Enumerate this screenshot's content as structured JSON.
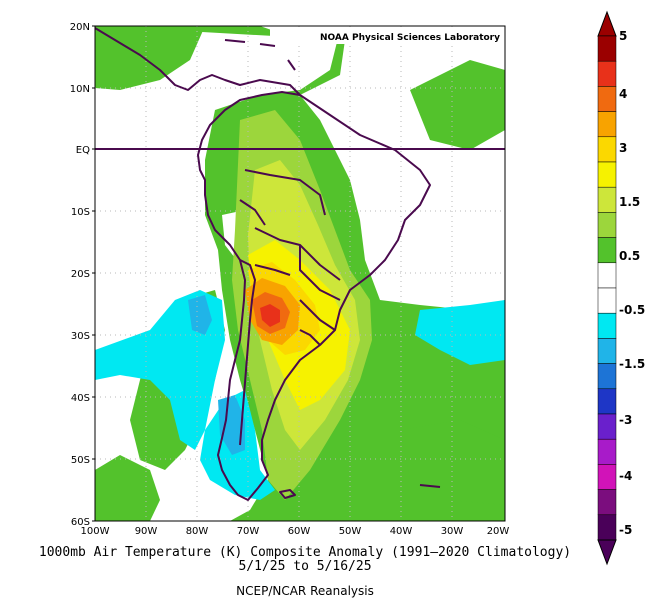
{
  "credit": "NOAA Physical Sciences Laboratory",
  "title": "1000mb Air Temperature (K) Composite Anomaly (1991–2020 Climatology)",
  "date_range": "5/1/25  to 5/16/25",
  "source": "NCEP/NCAR Reanalysis",
  "lat_labels": [
    "20N",
    "10N",
    "EQ",
    "10S",
    "20S",
    "30S",
    "40S",
    "50S",
    "60S"
  ],
  "lon_labels": [
    "100W",
    "90W",
    "80W",
    "70W",
    "60W",
    "50W",
    "40W",
    "30W",
    "20W"
  ],
  "colorbar": {
    "labels": [
      "5",
      "4",
      "3",
      "1.5",
      "0.5",
      "-0.5",
      "-1.5",
      "-3",
      "-4",
      "-5"
    ],
    "colors": [
      "#9b0000",
      "#e8311a",
      "#f06a10",
      "#f8a300",
      "#fbd800",
      "#f6f200",
      "#cde63a",
      "#9cd63c",
      "#53c22c",
      "#ffffff",
      "#ffffff",
      "#00e8f2",
      "#20b4e8",
      "#1d74d6",
      "#1e36c6",
      "#6a20cc",
      "#a81bc9",
      "#d113b8",
      "#7b0d7e",
      "#4a0059"
    ]
  },
  "colors": {
    "coast": "#4a0a4e",
    "grid": "#b9b9b9",
    "green": "#53c22c",
    "light_green": "#9cd63c",
    "yellow_green": "#cde63a",
    "yellow": "#f6f200",
    "gold": "#fbd800",
    "orange": "#f8a300",
    "dark_orange": "#f06a10",
    "red": "#e8311a",
    "cyan": "#00e8f2",
    "blue": "#20b4e8"
  }
}
